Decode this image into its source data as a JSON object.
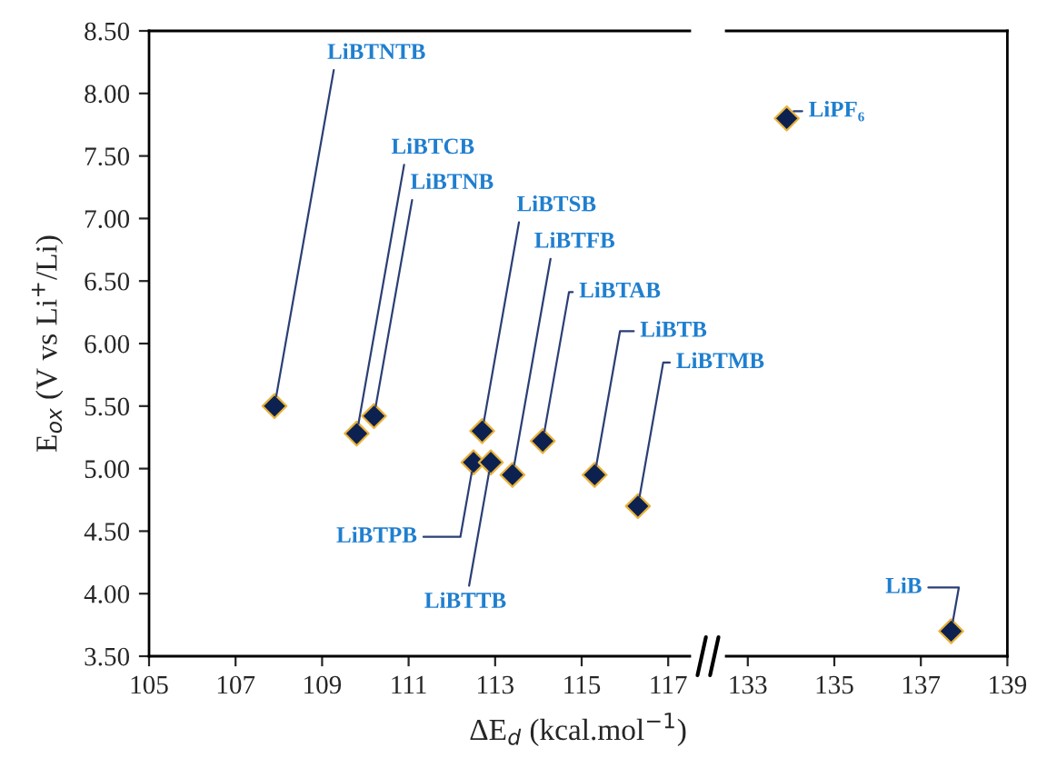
{
  "chart_data": [
    {
      "type": "scatter",
      "ylabel": "E$_{ox}$ (V vs Li$^{+}$/Li)",
      "xlabel": "ΔE$_{d}$ (kcal.mol$^{−1}$)",
      "marker": "diamond",
      "grid": false,
      "legend": false,
      "xlim": [
        105,
        117.5
      ],
      "xticks": [
        105,
        107,
        109,
        111,
        113,
        115,
        117
      ],
      "ylim": [
        3.5,
        8.5
      ],
      "yticks": [
        {
          "value": 3.5,
          "label": "3.50"
        },
        {
          "value": 4.0,
          "label": "4.00"
        },
        {
          "value": 4.5,
          "label": "4.50"
        },
        {
          "value": 5.0,
          "label": "5.00"
        },
        {
          "value": 5.5,
          "label": "5.50"
        },
        {
          "value": 6.0,
          "label": "6.00"
        },
        {
          "value": 6.5,
          "label": "6.50"
        },
        {
          "value": 7.0,
          "label": "7.00"
        },
        {
          "value": 7.5,
          "label": "7.50"
        },
        {
          "value": 8.0,
          "label": "8.00"
        },
        {
          "value": 8.5,
          "label": "8.50"
        }
      ],
      "series": [
        {
          "color": "#0d2150",
          "x": [
            107.9,
            109.8,
            110.2,
            112.7,
            113.4,
            114.1,
            115.3,
            116.3,
            112.5,
            112.9
          ],
          "values": [
            5.5,
            5.28,
            5.42,
            5.3,
            4.95,
            5.22,
            4.95,
            4.7,
            5.05,
            5.05
          ]
        }
      ],
      "annotations": [
        {
          "text": "LiBTNTB",
          "x": 107.9,
          "y": 5.5
        },
        {
          "text": "LiBTCB",
          "x": 109.8,
          "y": 5.28
        },
        {
          "text": "LiBTNB",
          "x": 110.2,
          "y": 5.42
        },
        {
          "text": "LiBTSB",
          "x": 112.7,
          "y": 5.3
        },
        {
          "text": "LiBTFB",
          "x": 113.4,
          "y": 4.95
        },
        {
          "text": "LiBTAB",
          "x": 114.1,
          "y": 5.22
        },
        {
          "text": "LiBTB",
          "x": 115.3,
          "y": 4.95
        },
        {
          "text": "LiBTMB",
          "x": 116.3,
          "y": 4.7
        },
        {
          "text": "LiBTPB",
          "x": 112.5,
          "y": 5.05
        },
        {
          "text": "LiBTTB",
          "x": 112.9,
          "y": 5.05
        }
      ]
    },
    {
      "type": "scatter",
      "marker": "diamond",
      "grid": false,
      "legend": false,
      "tick_labels": "x",
      "xlim": [
        132.5,
        139
      ],
      "xticks": [
        133,
        135,
        137,
        139
      ],
      "ylim": [
        3.5,
        8.5
      ],
      "series": [
        {
          "color": "#0d2150",
          "x": [
            133.9,
            137.7
          ],
          "values": [
            7.8,
            3.7
          ]
        }
      ],
      "annotations": [
        {
          "text": "LiPF₆",
          "x": 133.9,
          "y": 7.8
        },
        {
          "text": "LiB",
          "x": 137.7,
          "y": 3.7
        }
      ]
    }
  ]
}
